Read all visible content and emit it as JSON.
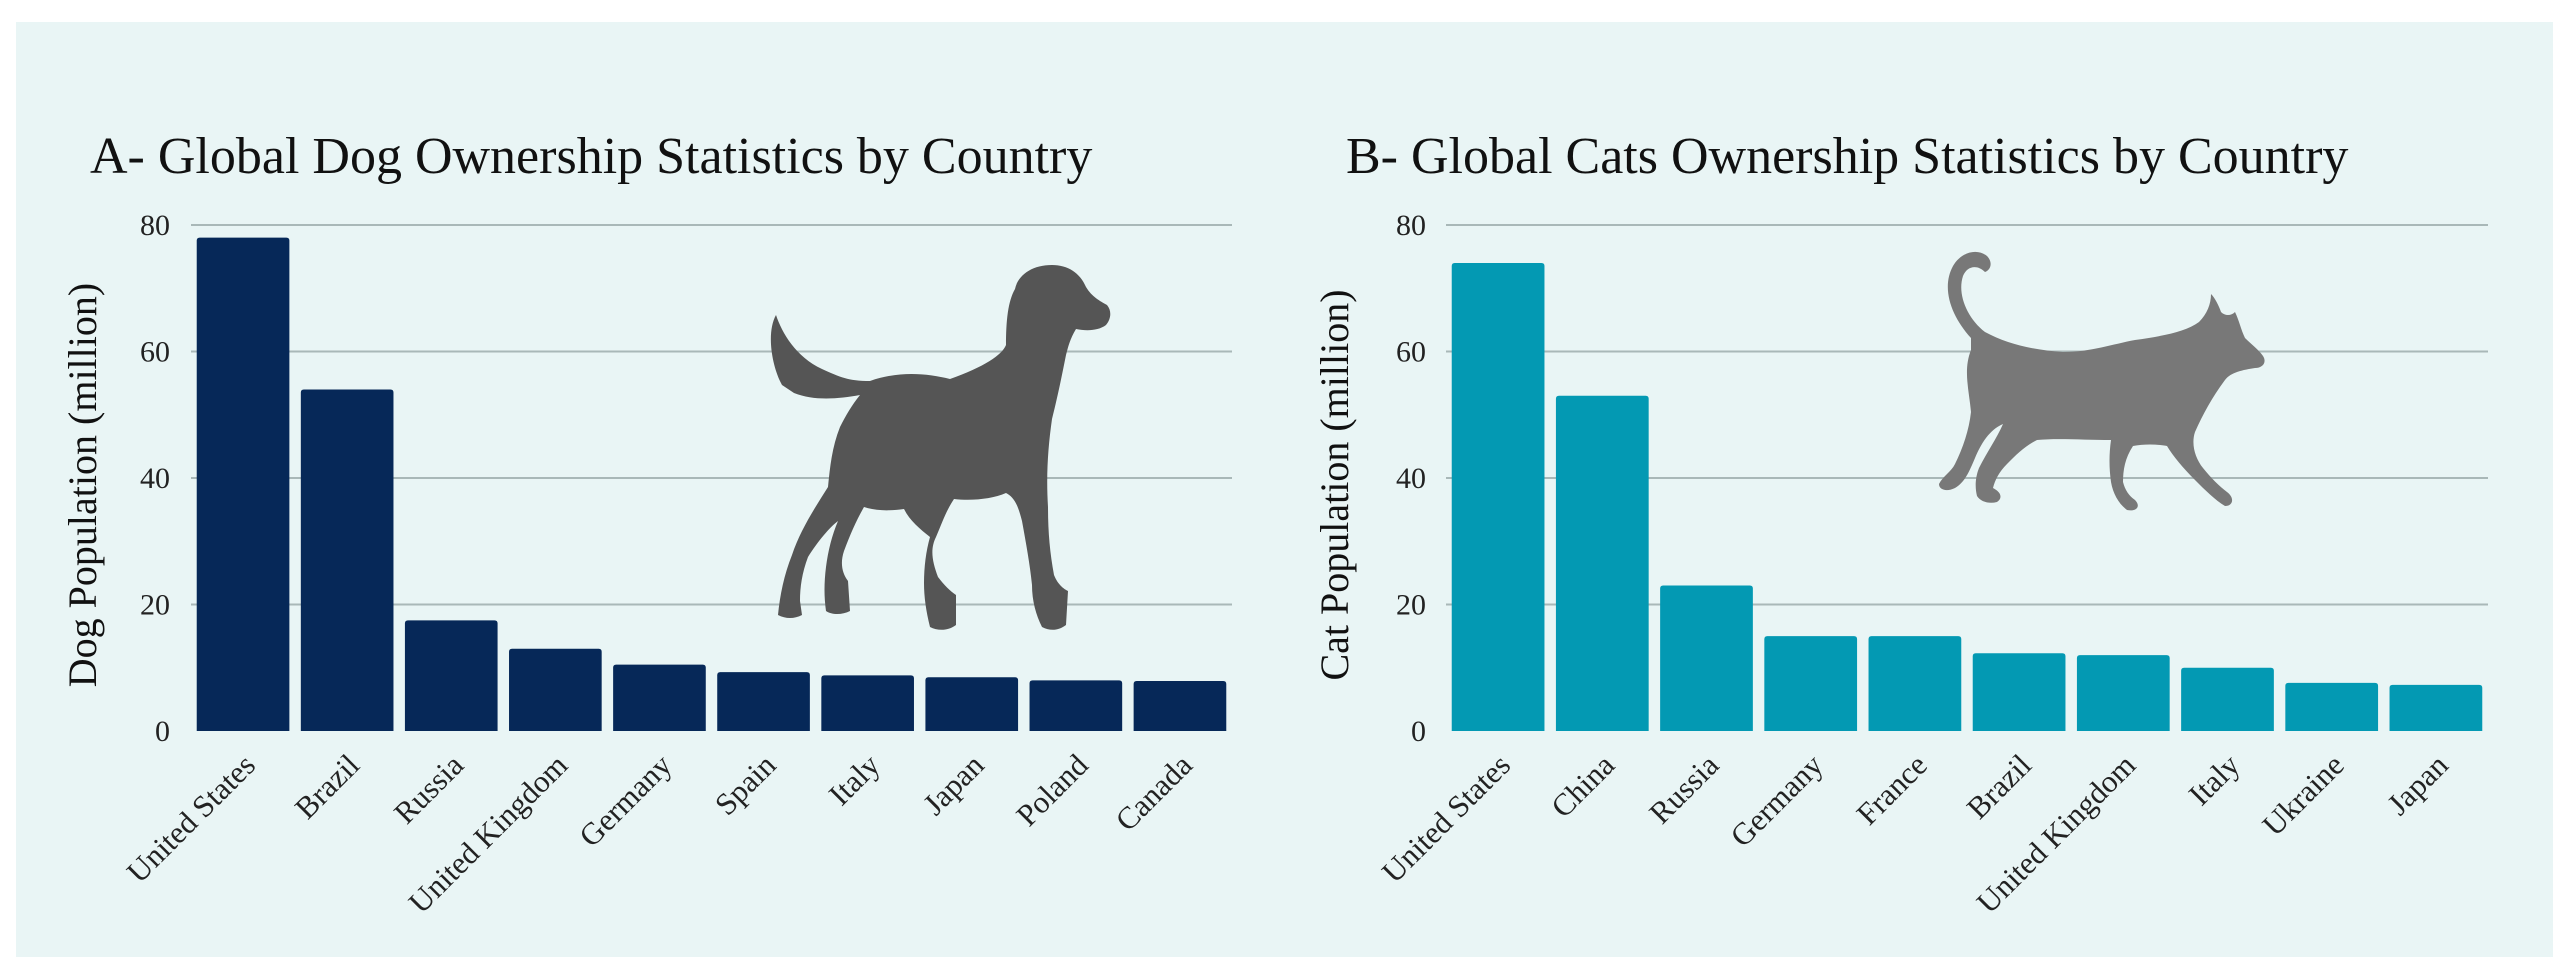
{
  "background": "#e9f5f5",
  "silhouette_color": "#555555",
  "cat_silhouette_color": "#787878",
  "chart_data": [
    {
      "id": "dog",
      "type": "bar",
      "title": "A- Global Dog Ownership Statistics by Country",
      "xlabel": "",
      "ylabel": "Dog Population (million)",
      "ylim": [
        0,
        80
      ],
      "yticks": [
        0,
        20,
        40,
        60,
        80
      ],
      "grid": true,
      "color": "#062858",
      "icon": "dog-silhouette-icon",
      "categories": [
        "United States",
        "Brazil",
        "Russia",
        "United Kingdom",
        "Germany",
        "Spain",
        "Italy",
        "Japan",
        "Poland",
        "Canada"
      ],
      "values": [
        78,
        54,
        17.5,
        13,
        10.5,
        9.3,
        8.8,
        8.5,
        8.0,
        7.9
      ]
    },
    {
      "id": "cat",
      "type": "bar",
      "title": "B- Global Cats Ownership Statistics by Country",
      "xlabel": "",
      "ylabel": "Cat Population (million)",
      "ylim": [
        0,
        80
      ],
      "yticks": [
        0,
        20,
        40,
        60,
        80
      ],
      "grid": true,
      "color": "#0399b3",
      "icon": "cat-silhouette-icon",
      "categories": [
        "United States",
        "China",
        "Russia",
        "Germany",
        "France",
        "Brazil",
        "United Kingdom",
        "Italy",
        "Ukraine",
        "Japan"
      ],
      "values": [
        74,
        53,
        23,
        15,
        15,
        12.3,
        12,
        10,
        7.6,
        7.3
      ]
    }
  ]
}
